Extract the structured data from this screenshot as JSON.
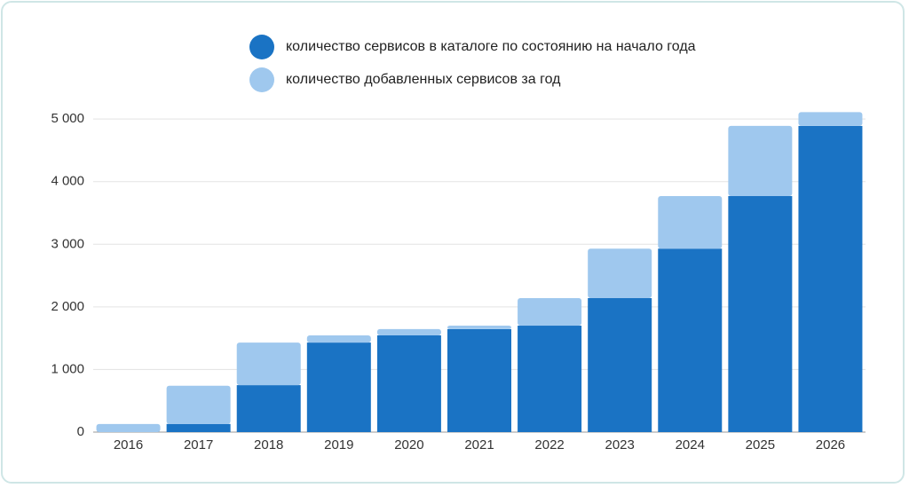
{
  "chart_data": {
    "type": "stacked-bar",
    "categories": [
      "2016",
      "2017",
      "2018",
      "2019",
      "2020",
      "2021",
      "2022",
      "2023",
      "2024",
      "2025",
      "2026"
    ],
    "series": [
      {
        "name": "количество сервисов в каталоге по состоянию на начало года",
        "color": "#1a73c4",
        "values": [
          0,
          130,
          750,
          1430,
          1545,
          1645,
          1700,
          2140,
          2930,
          3770,
          4890
        ]
      },
      {
        "name": "количество добавленных сервисов за год",
        "color": "#9fc8ee",
        "values": [
          130,
          610,
          680,
          115,
          100,
          55,
          440,
          790,
          840,
          1120,
          220
        ]
      }
    ],
    "ylim": [
      0,
      5300
    ],
    "yticks": [
      0,
      {
        "value": 1000,
        "label": "1 000"
      },
      {
        "value": 2000,
        "label": "2 000"
      },
      {
        "value": 3000,
        "label": "3 000"
      },
      {
        "value": 4000,
        "label": "4 000"
      },
      {
        "value": 5000,
        "label": "5 000"
      }
    ],
    "grid": true
  }
}
